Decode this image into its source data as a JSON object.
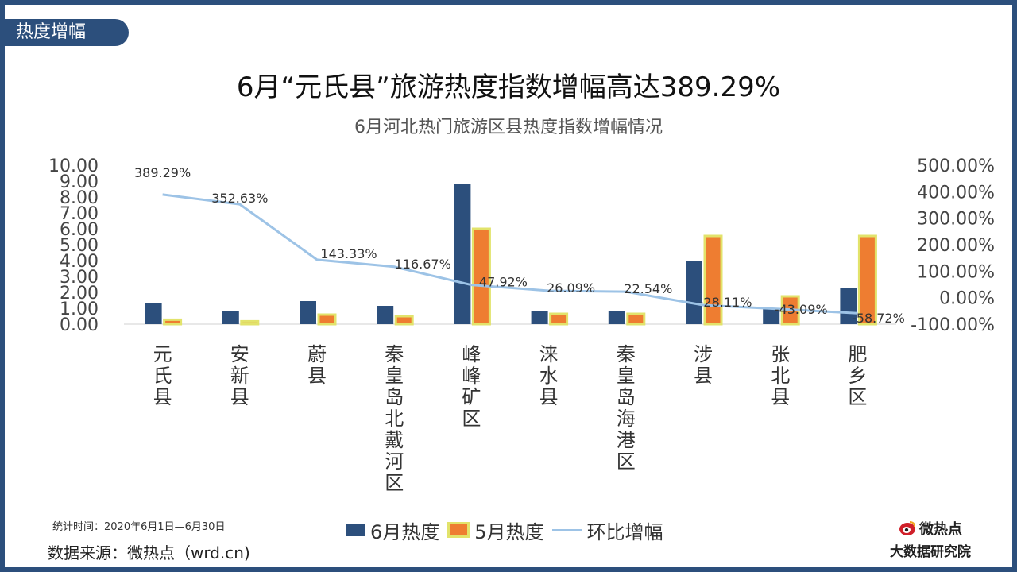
{
  "section_tab": "热度增幅",
  "title": "6月“元氏县”旅游热度指数增幅高达389.29%",
  "subtitle": "6月河北热门旅游区县热度指数增幅情况",
  "footer": {
    "stat_time": "统计时间：2020年6月1日—6月30日",
    "source": "数据来源：微热点（wrd.cn)",
    "brand_name": "微热点",
    "brand_org": "大数据研究院"
  },
  "colors": {
    "june": "#2c4f7c",
    "may": "#ee7d31",
    "may_border": "#e2e36b",
    "line": "#9dc3e6"
  },
  "chart_data": {
    "type": "bar",
    "categories": [
      "元氏县",
      "安新县",
      "蔚县",
      "秦皇岛北戴河区",
      "峰峰矿区",
      "涞水县",
      "秦皇岛海港区",
      "涉县",
      "张北县",
      "肥乡区"
    ],
    "series": [
      {
        "name": "6月热度",
        "type": "bar",
        "axis": "left",
        "values": [
          1.35,
          0.8,
          1.45,
          1.15,
          8.85,
          0.8,
          0.8,
          3.95,
          0.95,
          2.3
        ]
      },
      {
        "name": "5月热度",
        "type": "bar",
        "axis": "left",
        "values": [
          0.28,
          0.18,
          0.6,
          0.5,
          6.0,
          0.65,
          0.65,
          5.55,
          1.75,
          5.55
        ]
      },
      {
        "name": "环比增幅",
        "type": "line",
        "axis": "right",
        "values": [
          389.29,
          352.63,
          143.33,
          116.67,
          47.92,
          26.09,
          22.54,
          -28.11,
          -43.09,
          -58.72
        ],
        "labels": [
          "389.29%",
          "352.63%",
          "143.33%",
          "116.67%",
          "47.92%",
          "26.09%",
          "22.54%",
          "-28.11%",
          "-43.09%",
          "-58.72%"
        ]
      }
    ],
    "y_left": {
      "ylim": [
        0,
        10
      ],
      "ticks": [
        "0.00",
        "1.00",
        "2.00",
        "3.00",
        "4.00",
        "5.00",
        "6.00",
        "7.00",
        "8.00",
        "9.00",
        "10.00"
      ]
    },
    "y_right": {
      "ylim": [
        -100,
        500
      ],
      "ticks": [
        "-100.00%",
        "0.00%",
        "100.00%",
        "200.00%",
        "300.00%",
        "400.00%",
        "500.00%"
      ]
    },
    "legend": "bottom"
  }
}
